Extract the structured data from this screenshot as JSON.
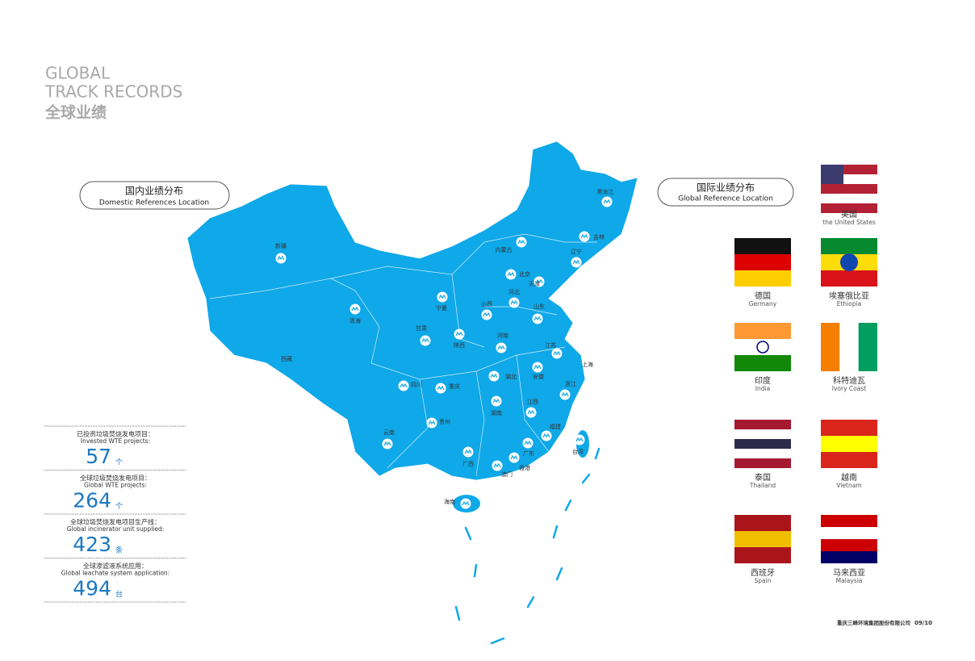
{
  "header": {
    "title_line1": "GLOBAL",
    "title_line2": "TRACK RECORDS",
    "title_cn": "全球业绩"
  },
  "domestic": {
    "label_cn": "国内业绩分布",
    "label_en": "Domestic References Location",
    "provinces": [
      "新疆",
      "西藏",
      "青海",
      "甘肃",
      "宁夏",
      "内蒙古",
      "黑龙江",
      "吉林",
      "辽宁",
      "北京",
      "天津",
      "河北",
      "山西",
      "山东",
      "陕西",
      "河南",
      "江苏",
      "上海",
      "安徽",
      "湖北",
      "四川",
      "重庆",
      "浙江",
      "湖南",
      "江西",
      "贵州",
      "云南",
      "福建",
      "广西",
      "广东",
      "香港",
      "澳门",
      "台湾",
      "海南"
    ]
  },
  "international": {
    "label_cn": "国际业绩分布",
    "label_en": "Global Reference Location",
    "countries": [
      {
        "name_cn": "美国",
        "name_en": "the United States"
      },
      {
        "name_cn": "德国",
        "name_en": "Germany"
      },
      {
        "name_cn": "埃塞俄比亚",
        "name_en": "Ethiopia"
      },
      {
        "name_cn": "印度",
        "name_en": "India"
      },
      {
        "name_cn": "科特迪瓦",
        "name_en": "Ivory Coast"
      },
      {
        "name_cn": "泰国",
        "name_en": "Thailand"
      },
      {
        "name_cn": "越南",
        "name_en": "Vietnam"
      },
      {
        "name_cn": "西班牙",
        "name_en": "Spain"
      },
      {
        "name_cn": "马来西亚",
        "name_en": "Malaysia"
      }
    ]
  },
  "stats": [
    {
      "label_cn": "已投资垃圾焚烧发电项目：",
      "label_en": "Invested WTE projects:",
      "value": "57",
      "unit": "个"
    },
    {
      "label_cn": "全球垃圾焚烧发电项目：",
      "label_en": "Global WTE projects:",
      "value": "264",
      "unit": "个"
    },
    {
      "label_cn": "全球垃圾焚烧发电项目生产线：",
      "label_en": "Global incinerator unit supplied:",
      "value": "423",
      "unit": "条"
    },
    {
      "label_cn": "全球渗滤液系统应用：",
      "label_en": "Global leachate system application:",
      "value": "494",
      "unit": "台"
    }
  ],
  "footer": {
    "company": "重庆三峰环境集团股份有限公司",
    "page": "09/10"
  }
}
